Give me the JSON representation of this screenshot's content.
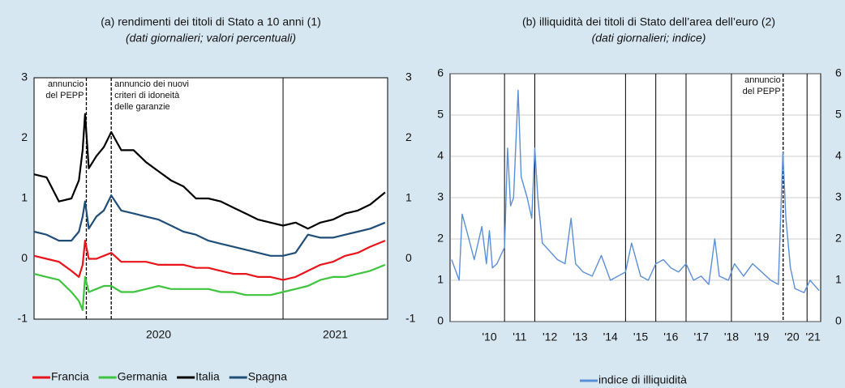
{
  "chart_data": [
    {
      "type": "line",
      "title": "(a) rendimenti dei titoli di Stato a 10 anni (1)",
      "subtitle": "(dati giornalieri; valori percentuali)",
      "x": [
        2020,
        2020.05,
        2020.1,
        2020.15,
        2020.18,
        2020.195,
        2020.205,
        2020.22,
        2020.25,
        2020.28,
        2020.31,
        2020.35,
        2020.4,
        2020.45,
        2020.5,
        2020.55,
        2020.6,
        2020.65,
        2020.7,
        2020.75,
        2020.8,
        2020.85,
        2020.9,
        2020.95,
        2021.0,
        2021.05,
        2021.1,
        2021.15,
        2021.2,
        2021.25,
        2021.3,
        2021.35,
        2021.41
      ],
      "series": [
        {
          "name": "Francia",
          "color": "#e8141a",
          "values": [
            0.05,
            0.0,
            -0.05,
            -0.2,
            -0.3,
            -0.1,
            0.3,
            0.0,
            0.0,
            0.05,
            0.1,
            -0.05,
            -0.05,
            -0.05,
            -0.1,
            -0.1,
            -0.1,
            -0.15,
            -0.15,
            -0.2,
            -0.25,
            -0.25,
            -0.3,
            -0.3,
            -0.35,
            -0.3,
            -0.2,
            -0.1,
            -0.05,
            0.05,
            0.1,
            0.2,
            0.3
          ]
        },
        {
          "name": "Germania",
          "color": "#3ec43e",
          "values": [
            -0.25,
            -0.3,
            -0.35,
            -0.55,
            -0.7,
            -0.85,
            -0.3,
            -0.55,
            -0.5,
            -0.45,
            -0.45,
            -0.55,
            -0.55,
            -0.5,
            -0.45,
            -0.5,
            -0.5,
            -0.5,
            -0.5,
            -0.55,
            -0.55,
            -0.6,
            -0.6,
            -0.6,
            -0.55,
            -0.5,
            -0.45,
            -0.35,
            -0.3,
            -0.3,
            -0.25,
            -0.2,
            -0.1
          ]
        },
        {
          "name": "Italia",
          "color": "#000000",
          "values": [
            1.4,
            1.35,
            0.95,
            1.0,
            1.3,
            1.8,
            2.4,
            1.5,
            1.7,
            1.85,
            2.1,
            1.8,
            1.8,
            1.6,
            1.45,
            1.3,
            1.2,
            1.0,
            1.0,
            0.95,
            0.85,
            0.75,
            0.65,
            0.6,
            0.55,
            0.6,
            0.5,
            0.6,
            0.65,
            0.75,
            0.8,
            0.9,
            1.1
          ]
        },
        {
          "name": "Spagna",
          "color": "#1f4e79",
          "values": [
            0.45,
            0.4,
            0.3,
            0.3,
            0.45,
            0.7,
            0.95,
            0.5,
            0.7,
            0.8,
            1.05,
            0.8,
            0.75,
            0.7,
            0.65,
            0.55,
            0.45,
            0.4,
            0.3,
            0.25,
            0.2,
            0.15,
            0.1,
            0.05,
            0.05,
            0.1,
            0.4,
            0.35,
            0.35,
            0.4,
            0.45,
            0.5,
            0.6
          ]
        }
      ],
      "xlim": [
        2020,
        2021.42
      ],
      "xticks": [
        {
          "value": 2020.5,
          "label": "2020"
        },
        {
          "value": 2021.21,
          "label": "2021"
        }
      ],
      "xgrid_lines": [
        2021
      ],
      "ylim": [
        -1,
        3
      ],
      "yticks": [
        -1,
        0,
        1,
        2,
        3
      ],
      "annotations": [
        {
          "x": 2020.21,
          "lines": [
            "annuncio",
            "del PEPP"
          ],
          "side": "left"
        },
        {
          "x": 2020.31,
          "lines": [
            "annuncio dei nuovi",
            "criteri di idoneità",
            "delle garanzie"
          ],
          "side": "right"
        }
      ],
      "legend": "bottom"
    },
    {
      "type": "line",
      "title": "(b) illiquidità dei titoli di Stato dell’area dell’euro (2)",
      "subtitle": "(dati giornalieri; indice)",
      "x": [
        2009.25,
        2009.5,
        2009.6,
        2009.75,
        2010.0,
        2010.25,
        2010.4,
        2010.5,
        2010.6,
        2010.75,
        2011.0,
        2011.1,
        2011.2,
        2011.3,
        2011.45,
        2011.55,
        2011.75,
        2011.9,
        2012.0,
        2012.1,
        2012.25,
        2012.5,
        2012.75,
        2013.0,
        2013.2,
        2013.35,
        2013.6,
        2013.9,
        2014.2,
        2014.5,
        2014.75,
        2015.0,
        2015.2,
        2015.5,
        2015.75,
        2016.0,
        2016.25,
        2016.5,
        2016.75,
        2017.0,
        2017.25,
        2017.5,
        2017.75,
        2017.95,
        2018.1,
        2018.4,
        2018.6,
        2018.9,
        2019.2,
        2019.5,
        2019.8,
        2020.05,
        2020.2,
        2020.3,
        2020.45,
        2020.6,
        2020.9,
        2021.1,
        2021.4
      ],
      "series": [
        {
          "name": "indice di illiquidità",
          "color": "#5b8fd6",
          "values": [
            1.5,
            1.0,
            2.6,
            2.2,
            1.5,
            2.3,
            1.4,
            2.2,
            1.3,
            1.4,
            1.8,
            4.2,
            2.8,
            3.0,
            5.6,
            3.5,
            3.0,
            2.5,
            4.2,
            3.0,
            1.9,
            1.7,
            1.5,
            1.4,
            2.5,
            1.4,
            1.2,
            1.1,
            1.6,
            1.0,
            1.1,
            1.2,
            1.9,
            1.1,
            1.0,
            1.4,
            1.5,
            1.3,
            1.2,
            1.4,
            1.0,
            1.1,
            0.9,
            2.0,
            1.1,
            1.0,
            1.4,
            1.1,
            1.4,
            1.2,
            1.0,
            0.9,
            4.1,
            2.5,
            1.3,
            0.8,
            0.7,
            1.0,
            0.75
          ]
        }
      ],
      "xlim": [
        2009.2,
        2021.45
      ],
      "xticks": [
        {
          "value": 2010.5,
          "label": "'10"
        },
        {
          "value": 2011.5,
          "label": "'11"
        },
        {
          "value": 2012.5,
          "label": "'12"
        },
        {
          "value": 2013.5,
          "label": "'13"
        },
        {
          "value": 2014.5,
          "label": "'14"
        },
        {
          "value": 2015.5,
          "label": "'15"
        },
        {
          "value": 2016.5,
          "label": "'16"
        },
        {
          "value": 2017.5,
          "label": "'17"
        },
        {
          "value": 2018.5,
          "label": "'18"
        },
        {
          "value": 2019.5,
          "label": "'19"
        },
        {
          "value": 2020.5,
          "label": "'20"
        },
        {
          "value": 2021.2,
          "label": "'21"
        }
      ],
      "xgrid_lines": [
        2011,
        2012,
        2015,
        2016,
        2017,
        2018.5,
        2021
      ],
      "ylim": [
        0,
        6
      ],
      "yticks": [
        0,
        1,
        2,
        3,
        4,
        5,
        6
      ],
      "grid": true,
      "annotations": [
        {
          "x": 2020.21,
          "lines": [
            "annuncio",
            "del PEPP"
          ],
          "side": "left"
        }
      ],
      "legend": "bottom"
    }
  ]
}
